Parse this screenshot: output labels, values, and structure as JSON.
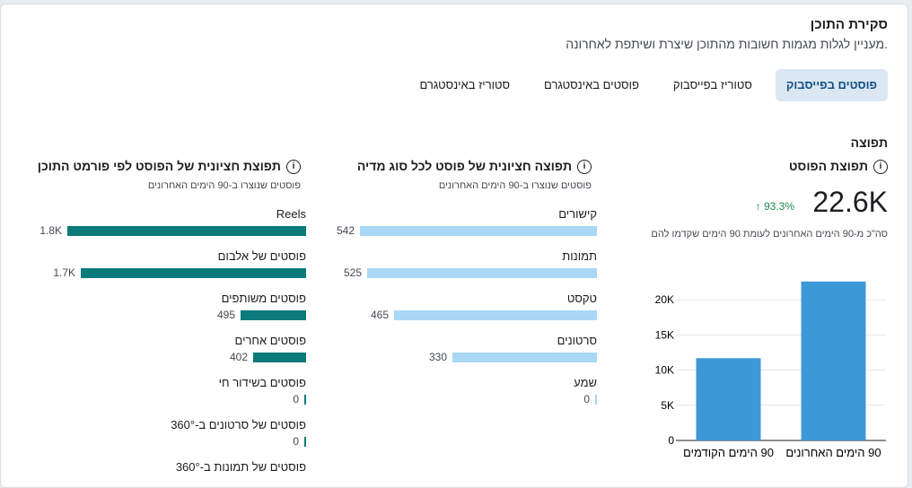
{
  "overview": {
    "title": "סקירת התוכן",
    "subtitle": "מעניין לגלות מגמות חשובות מהתוכן שיצרת ושיתפת לאחרונה."
  },
  "tabs": [
    {
      "label": "פוסטים בפייסבוק",
      "active": true
    },
    {
      "label": "סטוריז בפייסבוק",
      "active": false
    },
    {
      "label": "פוסטים באינסטגרם",
      "active": false
    },
    {
      "label": "סטוריז באינסטגרם",
      "active": false
    }
  ],
  "reach_section": {
    "heading": "תפוצה",
    "post_reach": {
      "title": "תפוצת הפוסט",
      "value": "22.6K",
      "change": "93.3%",
      "compare_text": "סה\"כ מ-90 הימים האחרונים לעומת 90 הימים שקדמו להם"
    }
  },
  "media_type_panel": {
    "title": "תפוצה חציונית של פוסט לכל סוג מדיה",
    "subtitle": "פוסטים שנוצרו ב-90 הימים האחרונים",
    "bar_color": "#a8d8f5",
    "max": 542,
    "items": [
      {
        "label": "קישורים",
        "value": 542,
        "display": "542"
      },
      {
        "label": "תמונות",
        "value": 525,
        "display": "525"
      },
      {
        "label": "טקסט",
        "value": 465,
        "display": "465"
      },
      {
        "label": "סרטונים",
        "value": 330,
        "display": "330"
      },
      {
        "label": "שמע",
        "value": 0,
        "display": "0"
      }
    ]
  },
  "format_panel": {
    "title": "תפוצת חציונית של הפוסט לפי פורמט התוכן",
    "subtitle": "פוסטים שנוצרו ב-90 הימים האחרונים",
    "bar_color": "#0a7a7a",
    "max": 1800,
    "items": [
      {
        "label": "Reels",
        "value": 1800,
        "display": "1.8K"
      },
      {
        "label": "פוסטים של אלבום",
        "value": 1700,
        "display": "1.7K"
      },
      {
        "label": "פוסטים משותפים",
        "value": 495,
        "display": "495"
      },
      {
        "label": "פוסטים אחרים",
        "value": 402,
        "display": "402"
      },
      {
        "label": "פוסטים בשידור חי",
        "value": 0,
        "display": "0"
      },
      {
        "label": "פוסטים של סרטונים ב-360°",
        "value": 0,
        "display": "0"
      },
      {
        "label": "פוסטים של תמונות ב-360°",
        "value": null,
        "display": ""
      }
    ]
  },
  "chart_data": {
    "type": "bar",
    "categories": [
      "90 הימים האחרונים",
      "90 הימים הקודמים"
    ],
    "values": [
      22600,
      11700
    ],
    "y_ticks": [
      "0",
      "5K",
      "10K",
      "15K",
      "20K"
    ],
    "ylim": [
      0,
      25000
    ],
    "bar_color": "#3d98d8"
  }
}
